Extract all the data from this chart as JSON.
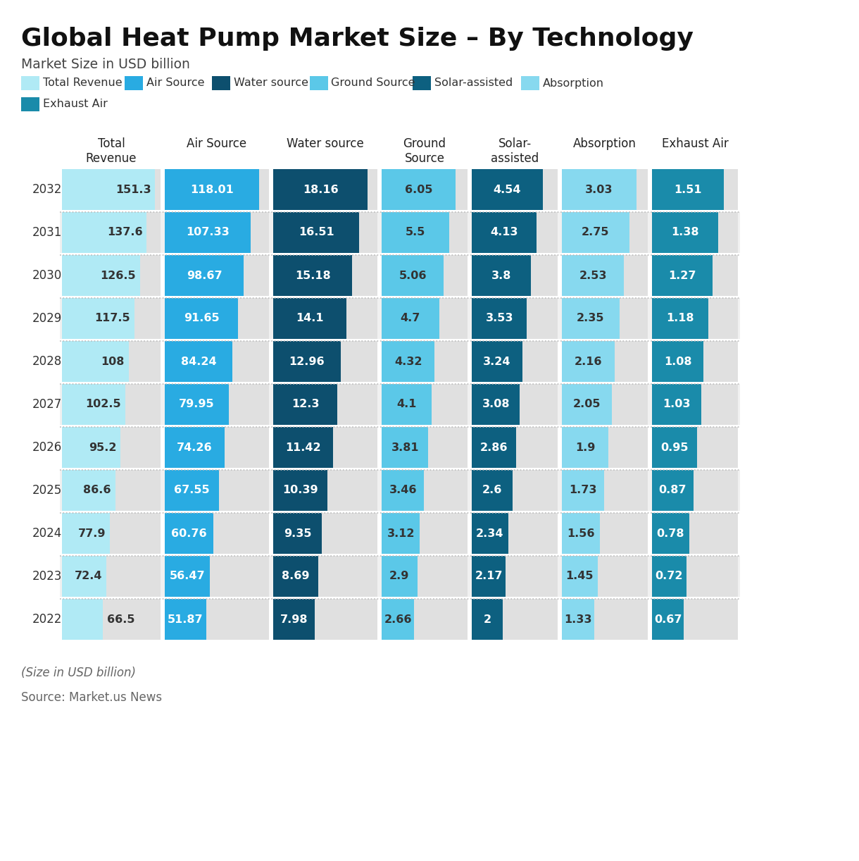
{
  "title": "Global Heat Pump Market Size – By Technology",
  "subtitle": "Market Size in USD billion",
  "footer1": "(Size in USD billion)",
  "footer2": "Source: Market.us News",
  "years": [
    2032,
    2031,
    2030,
    2029,
    2028,
    2027,
    2026,
    2025,
    2024,
    2023,
    2022
  ],
  "columns": [
    "Total\nRevenue",
    "Air Source",
    "Water source",
    "Ground\nSource",
    "Solar-\nassisted",
    "Absorption",
    "Exhaust Air"
  ],
  "legend_labels": [
    "Total Revenue",
    "Air Source",
    "Water source",
    "Ground Source",
    "Solar-assisted",
    "Absorption",
    "Exhaust Air"
  ],
  "colors": [
    "#b0eaf5",
    "#29abe2",
    "#0d4f6e",
    "#5bc8e8",
    "#0d6080",
    "#87d9ef",
    "#1a8baa"
  ],
  "data": {
    "2032": [
      151.3,
      118.01,
      18.16,
      6.05,
      4.54,
      3.03,
      1.51
    ],
    "2031": [
      137.6,
      107.33,
      16.51,
      5.5,
      4.13,
      2.75,
      1.38
    ],
    "2030": [
      126.5,
      98.67,
      15.18,
      5.06,
      3.8,
      2.53,
      1.27
    ],
    "2029": [
      117.5,
      91.65,
      14.1,
      4.7,
      3.53,
      2.35,
      1.18
    ],
    "2028": [
      108.0,
      84.24,
      12.96,
      4.32,
      3.24,
      2.16,
      1.08
    ],
    "2027": [
      102.5,
      79.95,
      12.3,
      4.1,
      3.08,
      2.05,
      1.03
    ],
    "2026": [
      95.2,
      74.26,
      11.42,
      3.81,
      2.86,
      1.9,
      0.95
    ],
    "2025": [
      86.6,
      67.55,
      10.39,
      3.46,
      2.6,
      1.73,
      0.87
    ],
    "2024": [
      77.9,
      60.76,
      9.35,
      3.12,
      2.34,
      1.56,
      0.78
    ],
    "2023": [
      72.4,
      56.47,
      8.69,
      2.9,
      2.17,
      1.45,
      0.72
    ],
    "2022": [
      66.5,
      51.87,
      7.98,
      2.66,
      2.0,
      1.33,
      0.67
    ]
  },
  "background_color": "#ffffff",
  "max_values": [
    160,
    130,
    20,
    7,
    5.5,
    3.5,
    1.8
  ],
  "col_text_inside_color": [
    "#333333",
    "#ffffff",
    "#ffffff",
    "#333333",
    "#ffffff",
    "#333333",
    "#ffffff"
  ],
  "col_text_outside_color": [
    "#333333",
    "#333333",
    "#333333",
    "#333333",
    "#333333",
    "#333333",
    "#333333"
  ]
}
